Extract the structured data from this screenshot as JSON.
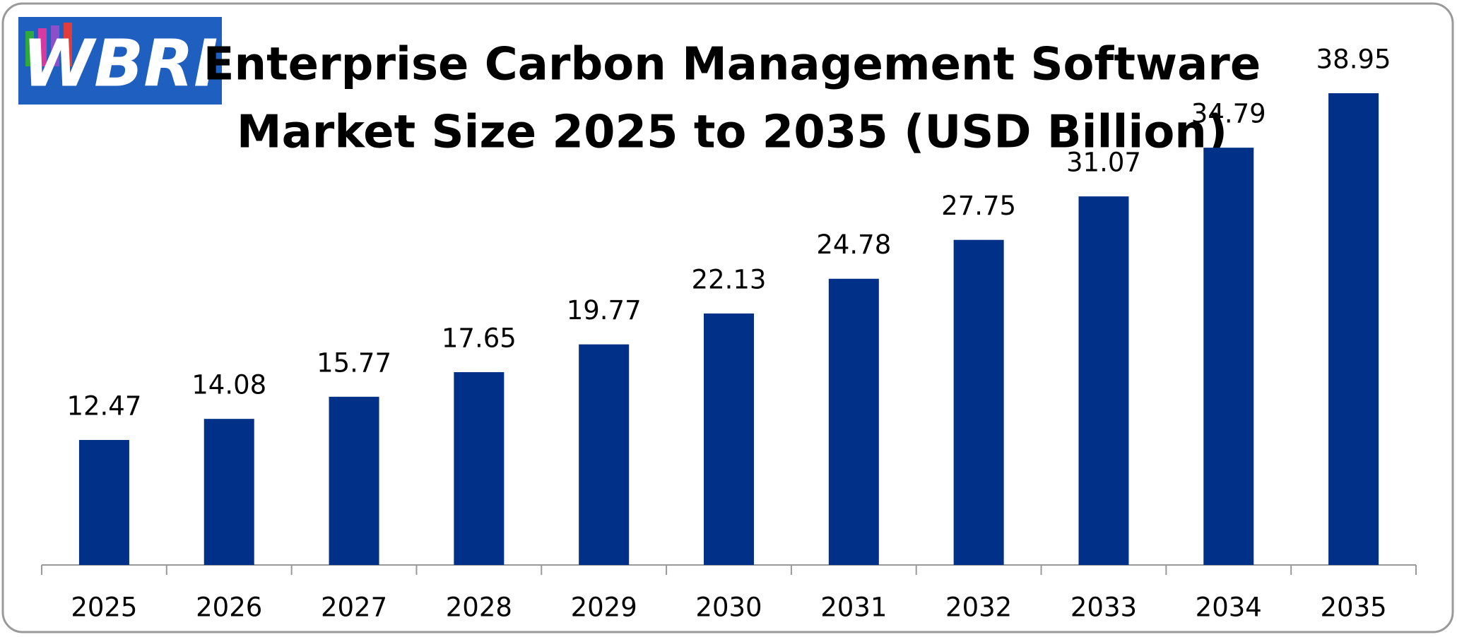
{
  "logo": "WBRI",
  "chart_data": {
    "type": "bar",
    "title": [
      "Enterprise Carbon Management Software",
      "Market Size 2025 to 2035 (USD Billion)"
    ],
    "categories": [
      "2025",
      "2026",
      "2027",
      "2028",
      "2029",
      "2030",
      "2031",
      "2032",
      "2033",
      "2034",
      "2035"
    ],
    "values": [
      12.47,
      14.08,
      15.77,
      17.65,
      19.77,
      22.13,
      24.78,
      27.75,
      31.07,
      34.79,
      38.95
    ],
    "color": "#003087"
  }
}
